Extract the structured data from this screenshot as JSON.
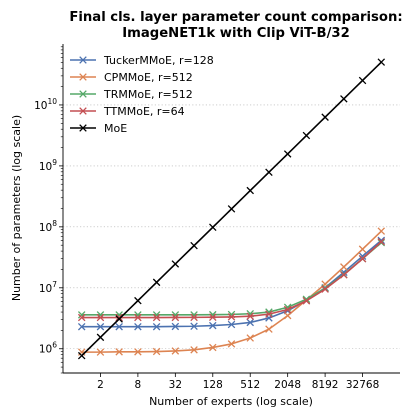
{
  "chart_data": {
    "type": "line",
    "title_line1": "Final cls. layer parameter count comparison:",
    "title_line2": "ImageNET1k with Clip ViT-B/32",
    "xlabel": "Number of experts (log scale)",
    "ylabel": "Number of parameters (log scale)",
    "x_scale": "log2",
    "y_scale": "log10",
    "xlim": [
      0.5,
      131072
    ],
    "ylim": [
      400000,
      100000000000
    ],
    "x_ticks": [
      2,
      8,
      32,
      128,
      512,
      2048,
      8192,
      32768
    ],
    "x_tick_labels": [
      "2",
      "8",
      "32",
      "128",
      "512",
      "2048",
      "8192",
      "32768"
    ],
    "y_ticks": [
      1000000,
      10000000,
      100000000,
      1000000000,
      10000000000
    ],
    "y_tick_labels": [
      {
        "base": "10",
        "exp": "6"
      },
      {
        "base": "10",
        "exp": "7"
      },
      {
        "base": "10",
        "exp": "8"
      },
      {
        "base": "10",
        "exp": "9"
      },
      {
        "base": "10",
        "exp": "10"
      }
    ],
    "grid": "horizontal dotted",
    "legend_position": "upper-left",
    "x": [
      1,
      2,
      4,
      8,
      16,
      32,
      64,
      128,
      256,
      512,
      1024,
      2048,
      4096,
      8192,
      16384,
      32768,
      65536
    ],
    "series": [
      {
        "name": "TuckerMMoE, r=128",
        "color": "#4c72b0",
        "values": [
          2300000,
          2300000,
          2300000,
          2300000,
          2300000,
          2320000,
          2340000,
          2400000,
          2500000,
          2700000,
          3200000,
          4200000,
          6200000,
          10000000,
          18000000,
          33000000,
          60000000
        ]
      },
      {
        "name": "CPMMoE, r=512",
        "color": "#dd8452",
        "values": [
          880000,
          880000,
          890000,
          890000,
          900000,
          920000,
          960000,
          1050000,
          1200000,
          1500000,
          2100000,
          3500000,
          6300000,
          11500000,
          22000000,
          43000000,
          85000000
        ]
      },
      {
        "name": "TRMMoE, r=512",
        "color": "#55a868",
        "values": [
          3600000,
          3600000,
          3600000,
          3600000,
          3600000,
          3600000,
          3600000,
          3620000,
          3650000,
          3750000,
          4000000,
          4800000,
          6500000,
          9800000,
          16500000,
          30000000,
          55000000
        ]
      },
      {
        "name": "TTMMoE, r=64",
        "color": "#c44e52",
        "values": [
          3250000,
          3250000,
          3250000,
          3250000,
          3250000,
          3260000,
          3270000,
          3290000,
          3330000,
          3420000,
          3700000,
          4400000,
          6100000,
          9500000,
          16300000,
          30000000,
          57000000
        ]
      },
      {
        "name": "MoE",
        "color": "#000000",
        "values": [
          770000,
          1540000,
          3080000,
          6150000,
          12300000,
          24600000,
          49200000,
          98400000,
          197000000,
          394000000,
          787000000,
          1570000000,
          3150000000,
          6300000000,
          12600000000,
          25200000000,
          50400000000
        ]
      }
    ]
  }
}
